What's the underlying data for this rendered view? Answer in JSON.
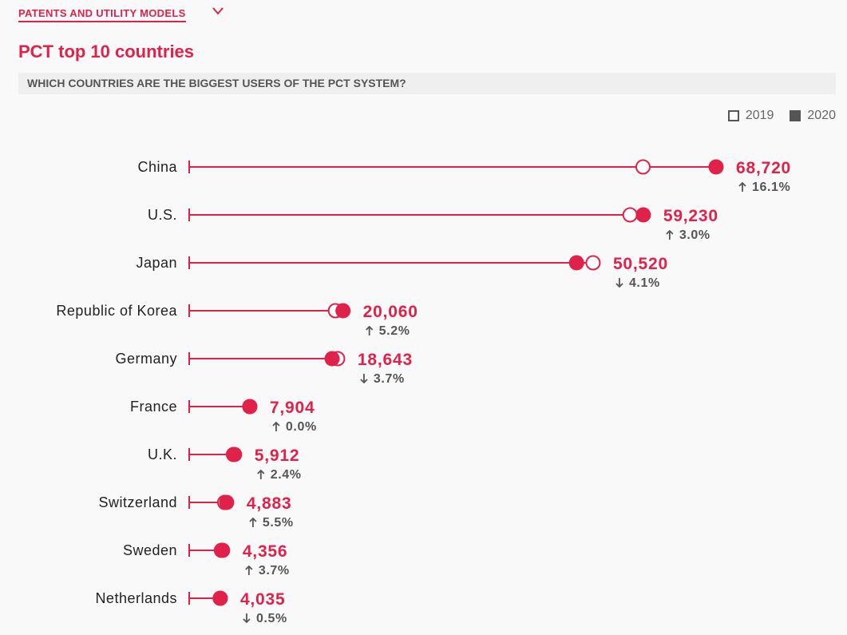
{
  "nav": {
    "label": "PATENTS AND UTILITY MODELS"
  },
  "chart_data": {
    "type": "dumbbell",
    "title": "PCT top 10 countries",
    "subtitle": "WHICH COUNTRIES ARE THE BIGGEST USERS OF THE PCT SYSTEM?",
    "legend": [
      "2019",
      "2020"
    ],
    "legend_placement": "top-right",
    "categories": [
      "China",
      "U.S.",
      "Japan",
      "Republic of Korea",
      "Germany",
      "France",
      "U.K.",
      "Switzerland",
      "Sweden",
      "Netherlands"
    ],
    "series": [
      {
        "name": "2019",
        "values": [
          59190,
          57500,
          52680,
          19070,
          19360,
          7904,
          5773,
          4628,
          4201,
          4055
        ]
      },
      {
        "name": "2020",
        "values": [
          68720,
          59230,
          50520,
          20060,
          18643,
          7904,
          5912,
          4883,
          4356,
          4035
        ]
      }
    ],
    "value_labels": [
      "68,720",
      "59,230",
      "50,520",
      "20,060",
      "18,643",
      "7,904",
      "5,912",
      "4,883",
      "4,356",
      "4,035"
    ],
    "change_labels": [
      "16.1%",
      "3.0%",
      "4.1%",
      "5.2%",
      "3.7%",
      "0.0%",
      "2.4%",
      "5.5%",
      "3.7%",
      "0.5%"
    ],
    "change_direction": [
      "up",
      "up",
      "down",
      "up",
      "down",
      "up",
      "up",
      "up",
      "up",
      "down"
    ],
    "xlim": [
      0,
      68720
    ],
    "grid": false,
    "colors": {
      "accent": "#e0224a",
      "text": "#222222",
      "change": "#555555"
    }
  }
}
